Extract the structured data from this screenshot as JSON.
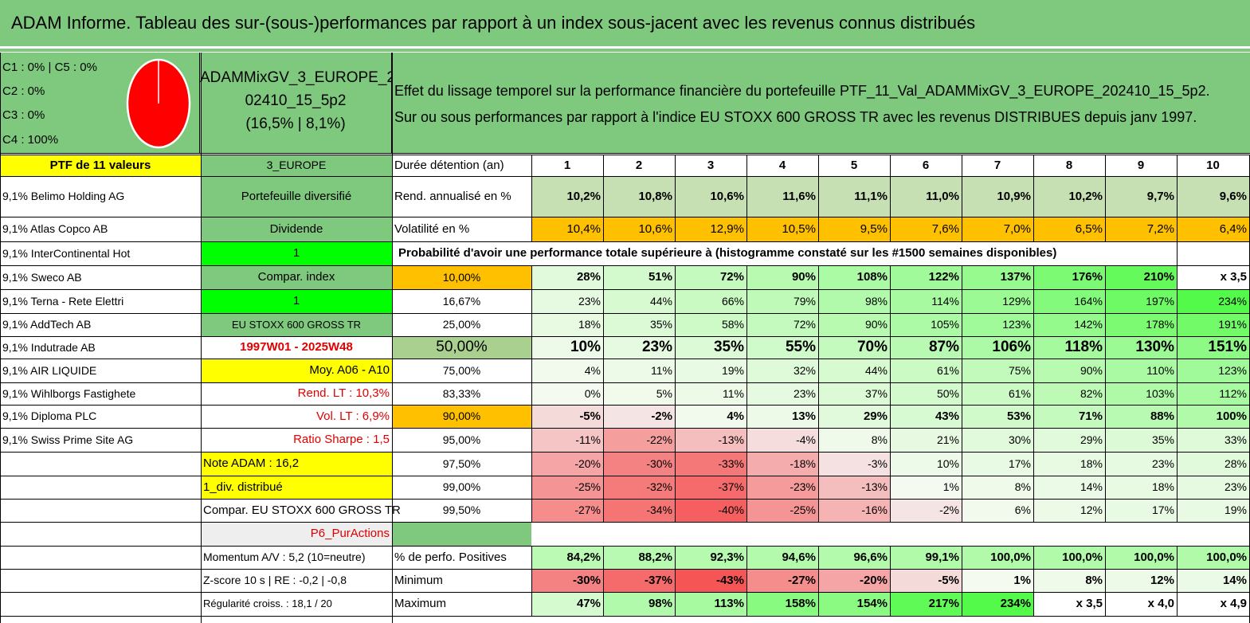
{
  "title": "ADAM Informe. Tableau des sur-(sous-)performances par rapport à un index sous-jacent avec les revenus connus distribués",
  "composition": {
    "lines": [
      "C1 : 0% | C5 : 0%",
      "C2 : 0%",
      "C3 : 0%",
      "C4 : 100%"
    ],
    "pie_color": "#ff0000"
  },
  "portfolio_name": {
    "line1": "ADAMMixGV_3_EUROPE_2",
    "line2": "02410_15_5p2",
    "line3": "(16,5% | 8,1%)"
  },
  "description": {
    "line1": "Effet du lissage temporel sur la performance financière du portefeuille PTF_11_Val_ADAMMixGV_3_EUROPE_202410_15_5p2.",
    "line2": "Sur ou sous performances par rapport à l'indice EU STOXX 600 GROSS TR avec les revenus DISTRIBUES depuis janv 1997."
  },
  "ptf_header": "PTF de 11 valeurs",
  "zone_label": "3_EUROPE",
  "holdings": [
    "9,1% Belimo Holding AG",
    "9,1% Atlas Copco AB",
    "9,1% InterContinental Hot",
    "9,1% Sweco AB",
    "9,1% Terna - Rete Elettri",
    "9,1% AddTech AB",
    "9,1% Indutrade AB",
    "9,1% AIR LIQUIDE",
    "9,1% Wihlborgs Fastighete",
    "9,1% Diploma PLC",
    "9,1% Swiss Prime Site AG"
  ],
  "params": [
    "Portefeuille diversifié",
    "Dividende",
    "1",
    "Compar. index",
    "1",
    "EU STOXX 600 GROSS TR",
    "1997W01 - 2025W48",
    "Moy. A06 - A10",
    "Rend. LT : 10,3%",
    "Vol. LT : 6,9%",
    "Ratio Sharpe : 1,5",
    "Note ADAM : 16,2",
    "1_div. distribué",
    "Compar. EU STOXX 600 GROSS TR",
    "P6_PurActions",
    "Momentum A/V : 5,2 (10=neutre)",
    "Z-score 10 s | RE : -0,2 | -0,8",
    "Régularité croiss. : 18,1 / 20"
  ],
  "duration_label": "Durée détention (an)",
  "years": [
    "1",
    "2",
    "3",
    "4",
    "5",
    "6",
    "7",
    "8",
    "9",
    "10"
  ],
  "rend_label": "Rend. annualisé en %",
  "rend": [
    "10,2%",
    "10,8%",
    "10,6%",
    "11,6%",
    "11,1%",
    "11,0%",
    "10,9%",
    "10,2%",
    "9,7%",
    "9,6%"
  ],
  "vol_label": "Volatilité en %",
  "vol": [
    "10,4%",
    "10,6%",
    "12,9%",
    "10,5%",
    "9,5%",
    "7,6%",
    "7,0%",
    "6,5%",
    "7,2%",
    "6,4%"
  ],
  "prob_title": "Probabilité d'avoir une performance totale supérieure à (histogramme constaté sur les #1500 semaines disponibles)",
  "prob_rows": [
    {
      "pct": "10,00%",
      "values": [
        "28%",
        "51%",
        "72%",
        "90%",
        "108%",
        "122%",
        "137%",
        "176%",
        "210%",
        "x 3,5"
      ]
    },
    {
      "pct": "16,67%",
      "values": [
        "23%",
        "44%",
        "66%",
        "79%",
        "98%",
        "114%",
        "129%",
        "164%",
        "197%",
        "234%"
      ]
    },
    {
      "pct": "25,00%",
      "values": [
        "18%",
        "35%",
        "58%",
        "72%",
        "90%",
        "105%",
        "123%",
        "142%",
        "178%",
        "191%"
      ]
    },
    {
      "pct": "50,00%",
      "values": [
        "10%",
        "23%",
        "35%",
        "55%",
        "70%",
        "87%",
        "106%",
        "118%",
        "130%",
        "151%"
      ]
    },
    {
      "pct": "75,00%",
      "values": [
        "4%",
        "11%",
        "19%",
        "32%",
        "44%",
        "61%",
        "75%",
        "90%",
        "110%",
        "123%"
      ]
    },
    {
      "pct": "83,33%",
      "values": [
        "0%",
        "5%",
        "11%",
        "23%",
        "37%",
        "50%",
        "61%",
        "82%",
        "103%",
        "112%"
      ]
    },
    {
      "pct": "90,00%",
      "values": [
        "-5%",
        "-2%",
        "4%",
        "13%",
        "29%",
        "43%",
        "53%",
        "71%",
        "88%",
        "100%"
      ]
    },
    {
      "pct": "95,00%",
      "values": [
        "-11%",
        "-22%",
        "-13%",
        "-4%",
        "8%",
        "21%",
        "30%",
        "29%",
        "35%",
        "33%"
      ]
    },
    {
      "pct": "97,50%",
      "values": [
        "-20%",
        "-30%",
        "-33%",
        "-18%",
        "-3%",
        "10%",
        "17%",
        "18%",
        "23%",
        "28%"
      ]
    },
    {
      "pct": "99,00%",
      "values": [
        "-25%",
        "-32%",
        "-37%",
        "-23%",
        "-13%",
        "1%",
        "8%",
        "14%",
        "18%",
        "23%"
      ]
    },
    {
      "pct": "99,50%",
      "values": [
        "-27%",
        "-34%",
        "-40%",
        "-25%",
        "-16%",
        "-2%",
        "6%",
        "12%",
        "17%",
        "19%"
      ]
    }
  ],
  "pos_label": "% de perfo. Positives",
  "pos": [
    "84,2%",
    "88,2%",
    "92,3%",
    "94,6%",
    "96,6%",
    "99,1%",
    "100,0%",
    "100,0%",
    "100,0%",
    "100,0%"
  ],
  "min_label": "Minimum",
  "min": [
    "-30%",
    "-37%",
    "-43%",
    "-27%",
    "-20%",
    "-5%",
    "1%",
    "8%",
    "12%",
    "14%"
  ],
  "max_label": "Maximum",
  "max": [
    "47%",
    "98%",
    "113%",
    "158%",
    "154%",
    "217%",
    "234%",
    "x 3,5",
    "x 4,0",
    "x 4,9"
  ],
  "colors": {
    "header_green": "#7fc97f",
    "yellow": "#ffff00",
    "orange": "#ffc000",
    "bright_green": "#00ff00",
    "red_text": "#e00000"
  }
}
